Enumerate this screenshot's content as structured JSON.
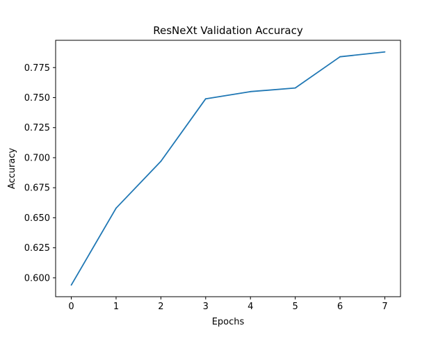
{
  "chart_data": {
    "type": "line",
    "title": "ResNeXt Validation Accuracy",
    "xlabel": "Epochs",
    "ylabel": "Accuracy",
    "x": [
      0,
      1,
      2,
      3,
      4,
      5,
      6,
      7
    ],
    "series": [
      {
        "values": [
          0.594,
          0.658,
          0.697,
          0.749,
          0.755,
          0.758,
          0.784,
          0.788
        ],
        "color": "#1f77b4"
      }
    ],
    "xticks": [
      0,
      1,
      2,
      3,
      4,
      5,
      6,
      7
    ],
    "xtick_labels": [
      "0",
      "1",
      "2",
      "3",
      "4",
      "5",
      "6",
      "7"
    ],
    "yticks": [
      0.6,
      0.625,
      0.65,
      0.675,
      0.7,
      0.725,
      0.75,
      0.775
    ],
    "ytick_labels": [
      "0.600",
      "0.625",
      "0.650",
      "0.675",
      "0.700",
      "0.725",
      "0.750",
      "0.775"
    ],
    "xlim": [
      -0.35,
      7.35
    ],
    "ylim": [
      0.5843,
      0.7977
    ],
    "grid": false,
    "legend": false
  }
}
